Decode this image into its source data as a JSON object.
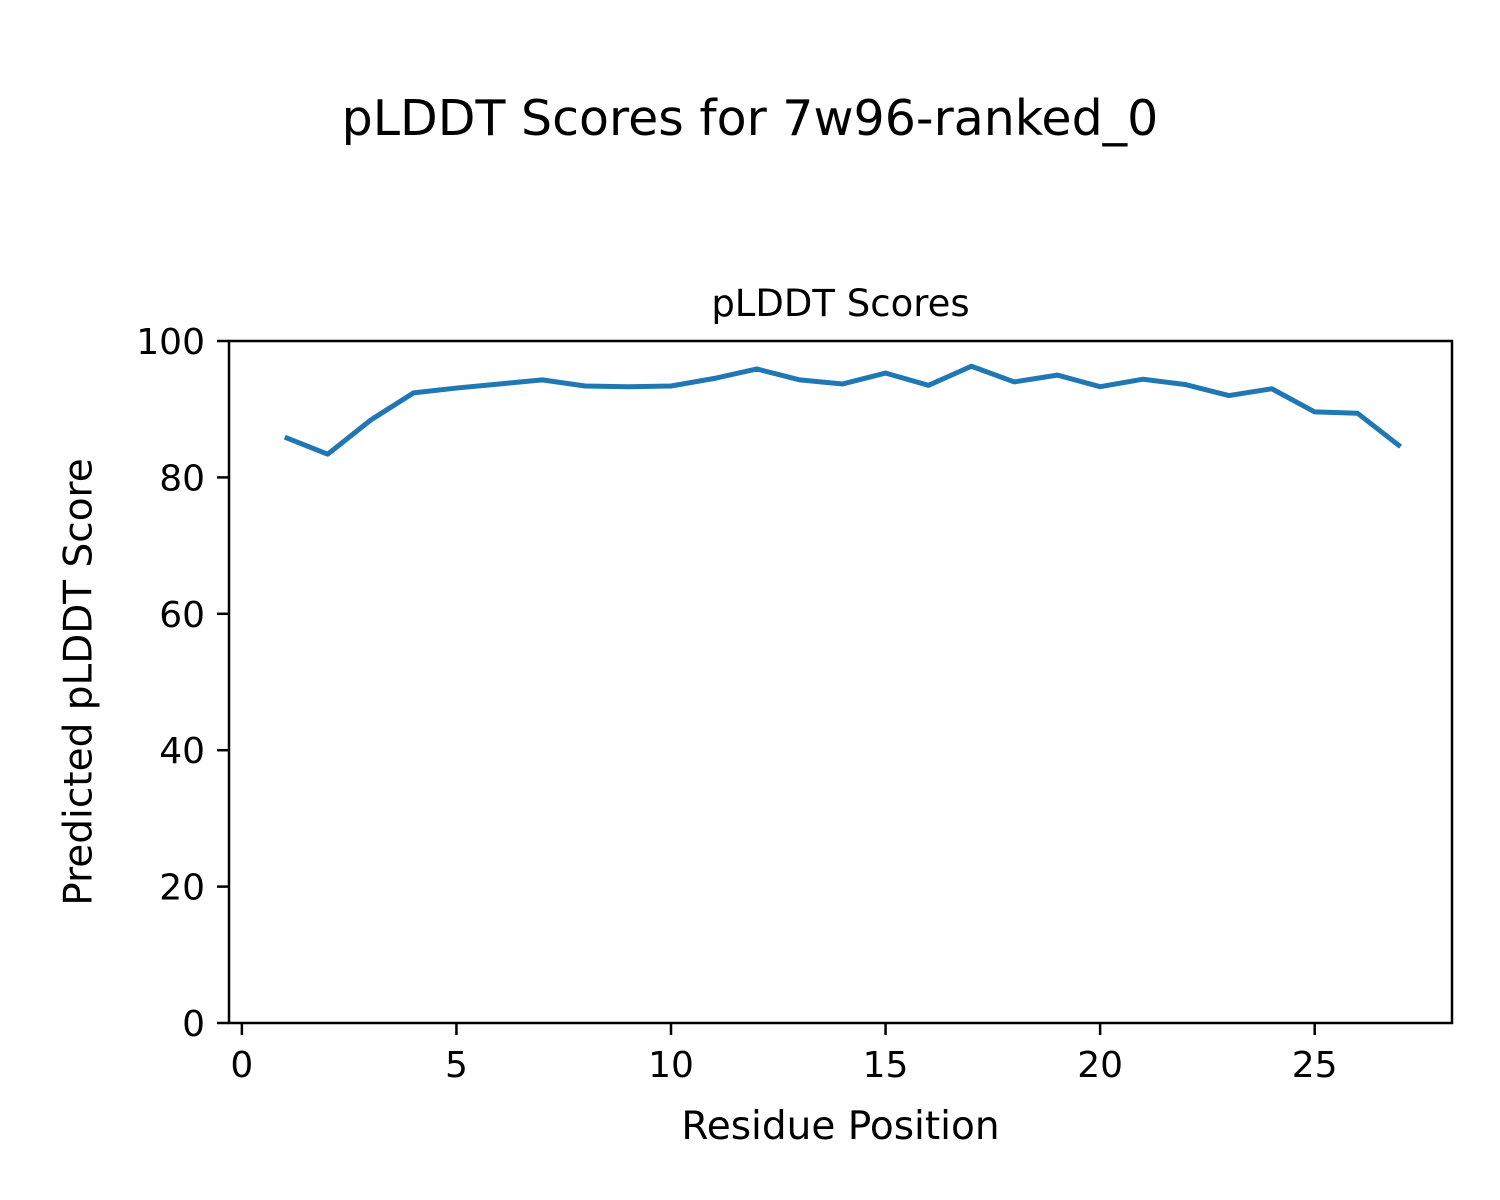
{
  "figure": {
    "title": "pLDDT Scores for 7w96-ranked_0",
    "background": "#ffffff"
  },
  "chart_data": {
    "type": "line",
    "title": "pLDDT Scores",
    "xlabel": "Residue Position",
    "ylabel": "Predicted pLDDT Score",
    "x": [
      1,
      2,
      3,
      4,
      5,
      6,
      7,
      8,
      9,
      10,
      11,
      12,
      13,
      14,
      15,
      16,
      17,
      18,
      19,
      20,
      21,
      22,
      23,
      24,
      25,
      26,
      27
    ],
    "series": [
      {
        "name": "pLDDT",
        "values": [
          85.9,
          83.4,
          88.4,
          92.4,
          93.1,
          93.7,
          94.3,
          93.4,
          93.3,
          93.4,
          94.5,
          95.9,
          94.3,
          93.7,
          95.3,
          93.5,
          96.3,
          94.0,
          95.0,
          93.3,
          94.4,
          93.6,
          92.0,
          93.0,
          89.6,
          89.4,
          84.5
        ]
      }
    ],
    "xlim": [
      -0.3,
      28.2
    ],
    "ylim": [
      0,
      100
    ],
    "xticks": [
      0,
      5,
      10,
      15,
      20,
      25
    ],
    "yticks": [
      0,
      20,
      40,
      60,
      80,
      100
    ],
    "line_color": "#1f77b4",
    "axis_color": "#000000",
    "grid": false,
    "legend": false
  }
}
